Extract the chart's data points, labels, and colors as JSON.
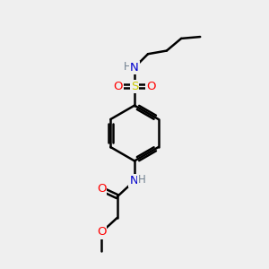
{
  "bg_color": "#efefef",
  "atom_colors": {
    "C": "#000000",
    "N": "#0000cd",
    "O": "#ff0000",
    "S": "#cccc00",
    "H": "#708090"
  },
  "bond_color": "#000000",
  "bond_width": 1.8,
  "figsize": [
    3.0,
    3.0
  ],
  "dpi": 100
}
